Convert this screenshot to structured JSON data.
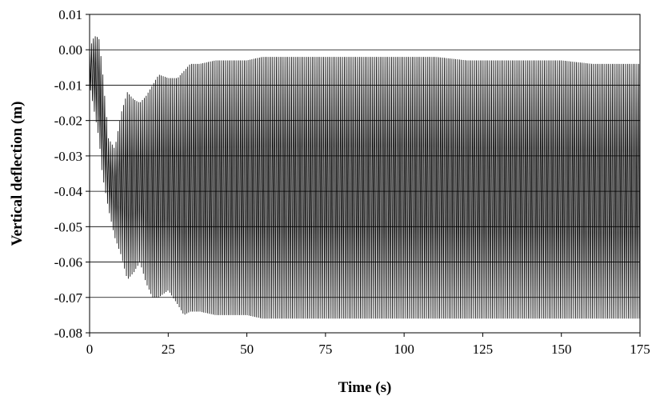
{
  "chart_data": {
    "type": "line",
    "title": "",
    "xlabel": "Time (s)",
    "ylabel": "Vertical deflection (m)",
    "xlim": [
      0,
      175
    ],
    "ylim": [
      -0.08,
      0.01
    ],
    "x_ticks": [
      0,
      25,
      50,
      75,
      100,
      125,
      150,
      175
    ],
    "x_tick_labels": [
      "0",
      "25",
      "50",
      "75",
      "100",
      "125",
      "150",
      "175"
    ],
    "y_ticks": [
      0.01,
      0.0,
      -0.01,
      -0.02,
      -0.03,
      -0.04,
      -0.05,
      -0.06,
      -0.07,
      -0.08
    ],
    "y_tick_labels": [
      "0.01",
      "0.00",
      "-0.01",
      "-0.02",
      "-0.03",
      "-0.04",
      "-0.05",
      "-0.06",
      "-0.07",
      "-0.08"
    ],
    "grid": "horizontal",
    "legend": "none",
    "series_color": "#000000",
    "oscillation_period_s": 0.6,
    "envelope": {
      "time": [
        0,
        1,
        2,
        3,
        4,
        5,
        6,
        8,
        10,
        12,
        14,
        16,
        18,
        20,
        22,
        25,
        28,
        30,
        32,
        35,
        40,
        45,
        50,
        55,
        60,
        65,
        70,
        80,
        90,
        100,
        110,
        120,
        130,
        140,
        150,
        160,
        170,
        175
      ],
      "upper": [
        0.0,
        0.003,
        0.004,
        0.003,
        -0.005,
        -0.015,
        -0.025,
        -0.028,
        -0.018,
        -0.012,
        -0.014,
        -0.015,
        -0.013,
        -0.01,
        -0.007,
        -0.008,
        -0.008,
        -0.006,
        -0.004,
        -0.004,
        -0.003,
        -0.003,
        -0.003,
        -0.002,
        -0.002,
        -0.002,
        -0.002,
        -0.002,
        -0.002,
        -0.002,
        -0.002,
        -0.003,
        -0.003,
        -0.003,
        -0.003,
        -0.004,
        -0.004,
        -0.004
      ],
      "lower": [
        -0.01,
        -0.015,
        -0.02,
        -0.025,
        -0.035,
        -0.04,
        -0.045,
        -0.053,
        -0.058,
        -0.065,
        -0.063,
        -0.06,
        -0.066,
        -0.07,
        -0.07,
        -0.068,
        -0.072,
        -0.075,
        -0.074,
        -0.074,
        -0.075,
        -0.075,
        -0.075,
        -0.076,
        -0.076,
        -0.076,
        -0.076,
        -0.076,
        -0.076,
        -0.076,
        -0.076,
        -0.076,
        -0.076,
        -0.076,
        -0.076,
        -0.076,
        -0.076,
        -0.076
      ]
    }
  }
}
